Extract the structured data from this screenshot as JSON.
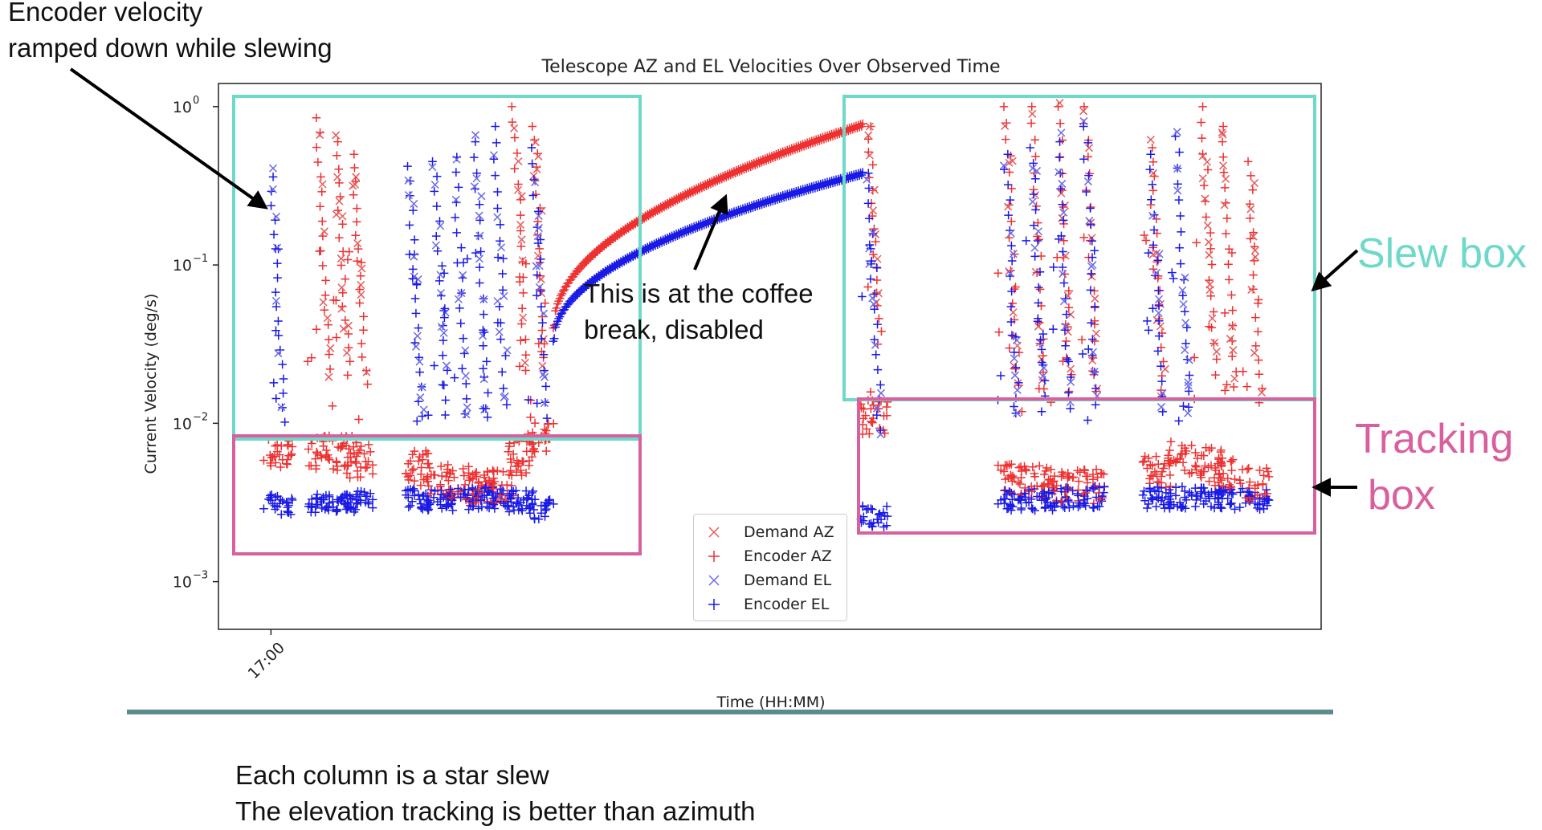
{
  "annotations": {
    "encoder_note": [
      "Encoder velocity",
      "ramped down while slewing"
    ],
    "coffee_note": [
      "This is at the coffee",
      "break, disabled"
    ],
    "slew_label": "Slew box",
    "tracking_label": [
      "Tracking",
      "box"
    ],
    "slew_color": "#6fd9c9",
    "tracking_color": "#d9609e"
  },
  "captions": [
    "Each column is a star slew",
    "The elevation tracking is better than azimuth"
  ],
  "chart_data": {
    "type": "scatter",
    "title": "Telescope AZ and EL Velocities Over Observed Time",
    "xlabel": "Time (HH:MM)",
    "ylabel": "Current Velocity (deg/s)",
    "yscale": "log",
    "ylim": [
      0.0005,
      1.4
    ],
    "x_unit": "minutes after 17:00",
    "xlim": [
      -4,
      80
    ],
    "x_ticks": [
      {
        "value": 0,
        "label": "17:00"
      }
    ],
    "y_ticks": [
      {
        "value": 1,
        "label": "10",
        "exp": "0"
      },
      {
        "value": 0.1,
        "label": "10",
        "exp": "−1"
      },
      {
        "value": 0.01,
        "label": "10",
        "exp": "−2"
      },
      {
        "value": 0.001,
        "label": "10",
        "exp": "−3"
      }
    ],
    "legend": {
      "placement": "lower-center"
    },
    "series": [
      {
        "name": "Demand AZ",
        "marker": "x",
        "color": "#e8595a"
      },
      {
        "name": "Encoder AZ",
        "marker": "+",
        "color": "#ee3030"
      },
      {
        "name": "Demand EL",
        "marker": "x",
        "color": "#6a6ae6"
      },
      {
        "name": "Encoder EL",
        "marker": "+",
        "color": "#1a1ae6"
      }
    ],
    "coffee_break_ramp": {
      "x_range": [
        21.5,
        45.0
      ],
      "az": {
        "start": 0.04,
        "end": 0.75
      },
      "el": {
        "start": 0.033,
        "end": 0.37
      }
    },
    "slews": [
      {
        "x": 0.1,
        "peak_az": 0.0,
        "peak_el": 0.36,
        "az_track": 0.0065,
        "el_track": 0.0031
      },
      {
        "x": 3.5,
        "peak_az": 0.85,
        "peak_el": 0.0,
        "az_track": 0.0065,
        "el_track": 0.0031
      },
      {
        "x": 5.0,
        "peak_az": 0.6,
        "peak_el": 0.0,
        "az_track": 0.0065,
        "el_track": 0.0032
      },
      {
        "x": 6.3,
        "peak_az": 0.5,
        "peak_el": 0.0,
        "az_track": 0.0058,
        "el_track": 0.0032
      },
      {
        "x": 10.5,
        "peak_az": 0.0,
        "peak_el": 0.42,
        "az_track": 0.0052,
        "el_track": 0.0033
      },
      {
        "x": 12.5,
        "peak_az": 0.0,
        "peak_el": 0.45,
        "az_track": 0.0045,
        "el_track": 0.0033
      },
      {
        "x": 14.0,
        "peak_az": 0.0,
        "peak_el": 0.48,
        "az_track": 0.0042,
        "el_track": 0.0033
      },
      {
        "x": 15.5,
        "peak_az": 0.0,
        "peak_el": 0.6,
        "az_track": 0.004,
        "el_track": 0.0034
      },
      {
        "x": 17.0,
        "peak_az": 0.0,
        "peak_el": 0.75,
        "az_track": 0.004,
        "el_track": 0.0034
      },
      {
        "x": 18.5,
        "peak_az": 1.0,
        "peak_el": 0.0,
        "az_track": 0.006,
        "el_track": 0.0032
      },
      {
        "x": 20.0,
        "peak_az": 0.75,
        "peak_el": 0.55,
        "az_track": 0.0085,
        "el_track": 0.0029
      },
      {
        "x": 45.5,
        "peak_az": 0.75,
        "peak_el": 0.38,
        "az_track": 0.011,
        "el_track": 0.0026
      },
      {
        "x": 56.0,
        "peak_az": 1.0,
        "peak_el": 0.5,
        "az_track": 0.0045,
        "el_track": 0.0033
      },
      {
        "x": 58.0,
        "peak_az": 1.0,
        "peak_el": 0.55,
        "az_track": 0.0042,
        "el_track": 0.0033
      },
      {
        "x": 60.0,
        "peak_az": 1.0,
        "peak_el": 0.6,
        "az_track": 0.004,
        "el_track": 0.0034
      },
      {
        "x": 62.0,
        "peak_az": 1.0,
        "peak_el": 0.75,
        "az_track": 0.004,
        "el_track": 0.0034
      },
      {
        "x": 67.0,
        "peak_az": 0.55,
        "peak_el": 0.5,
        "az_track": 0.005,
        "el_track": 0.0034
      },
      {
        "x": 69.0,
        "peak_az": 0.0,
        "peak_el": 0.65,
        "az_track": 0.006,
        "el_track": 0.0034
      },
      {
        "x": 71.0,
        "peak_az": 1.0,
        "peak_el": 0.0,
        "az_track": 0.0055,
        "el_track": 0.0034
      },
      {
        "x": 72.5,
        "peak_az": 0.75,
        "peak_el": 0.0,
        "az_track": 0.0048,
        "el_track": 0.0033
      },
      {
        "x": 74.5,
        "peak_az": 0.45,
        "peak_el": 0.0,
        "az_track": 0.0042,
        "el_track": 0.0033
      }
    ]
  }
}
